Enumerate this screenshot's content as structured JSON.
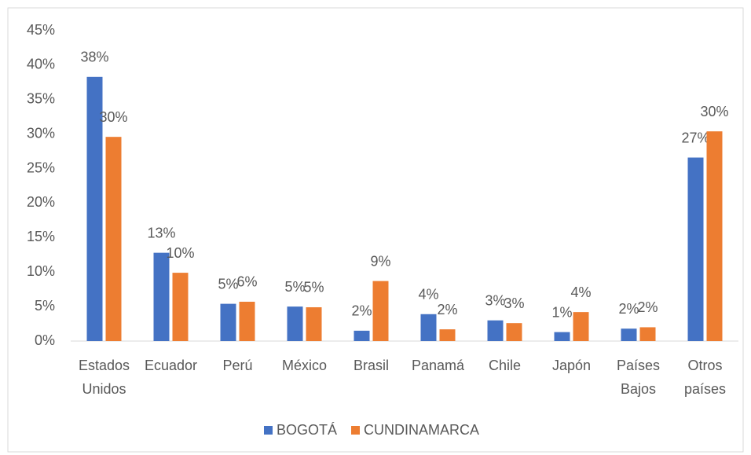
{
  "chart_data": {
    "type": "bar",
    "categories": [
      "Estados Unidos",
      "Ecuador",
      "Perú",
      "México",
      "Brasil",
      "Panamá",
      "Chile",
      "Japón",
      "Países Bajos",
      "Otros países"
    ],
    "series": [
      {
        "name": "BOGOTÁ",
        "color": "#4472c4",
        "values": [
          38.3,
          12.8,
          5.4,
          5.0,
          1.5,
          3.9,
          3.0,
          1.3,
          1.8,
          26.6
        ],
        "value_labels": [
          "38%",
          "13%",
          "5%",
          "5%",
          "2%",
          "4%",
          "3%",
          "1%",
          "2%",
          "27%"
        ]
      },
      {
        "name": "CUNDINAMARCA",
        "color": "#ed7d31",
        "values": [
          29.6,
          9.9,
          5.7,
          4.9,
          8.7,
          1.7,
          2.6,
          4.2,
          2.0,
          30.4
        ],
        "value_labels": [
          "30%",
          "10%",
          "6%",
          "5%",
          "9%",
          "2%",
          "3%",
          "4%",
          "2%",
          "30%"
        ]
      }
    ],
    "ylim": [
      0,
      45
    ],
    "yticks": [
      {
        "value": 0,
        "label": "0%"
      },
      {
        "value": 5,
        "label": "5%"
      },
      {
        "value": 10,
        "label": "10%"
      },
      {
        "value": 15,
        "label": "15%"
      },
      {
        "value": 20,
        "label": "20%"
      },
      {
        "value": 25,
        "label": "25%"
      },
      {
        "value": 30,
        "label": "30%"
      },
      {
        "value": 35,
        "label": "35%"
      },
      {
        "value": 40,
        "label": "40%"
      },
      {
        "value": 45,
        "label": "45%"
      }
    ],
    "grid": false,
    "legend": "bottom"
  }
}
